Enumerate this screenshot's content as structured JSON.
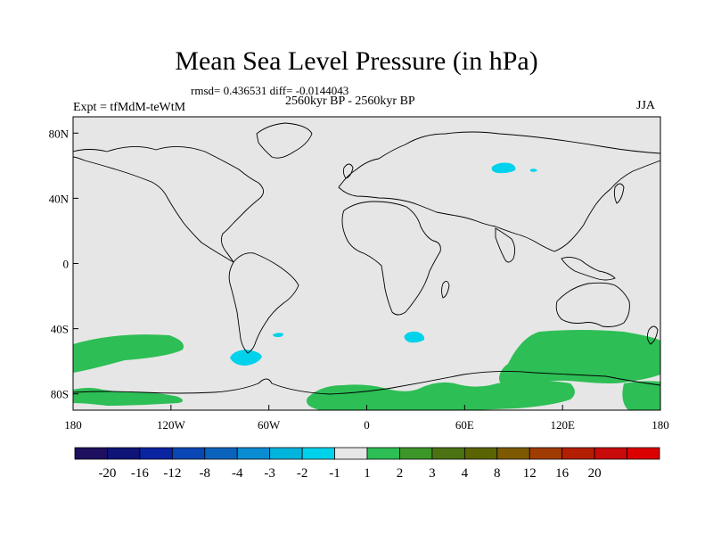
{
  "title": "Mean Sea Level Pressure (in hPa)",
  "stats": "rmsd= 0.436531 diff= -0.0144043",
  "period": "2560kyr BP - 2560kyr BP",
  "experiment": "Expt = tfMdM-teWtM",
  "season": "JJA",
  "colors": {
    "ocean_background": "#e6e6e6",
    "positive_anomaly": "#2dbe55",
    "negative_anomaly": "#00d2eb",
    "coastline": "#000000"
  },
  "axes": {
    "x_ticks": [
      {
        "value": -180,
        "label": "180"
      },
      {
        "value": -120,
        "label": "120W"
      },
      {
        "value": -60,
        "label": "60W"
      },
      {
        "value": 0,
        "label": "0"
      },
      {
        "value": 60,
        "label": "60E"
      },
      {
        "value": 120,
        "label": "120E"
      },
      {
        "value": 180,
        "label": "180"
      }
    ],
    "y_ticks": [
      {
        "value": 80,
        "label": "80N"
      },
      {
        "value": 40,
        "label": "40N"
      },
      {
        "value": 0,
        "label": "0"
      },
      {
        "value": -40,
        "label": "40S"
      },
      {
        "value": -80,
        "label": "80S"
      }
    ],
    "lon_range": [
      -180,
      180
    ],
    "lat_range": [
      -90,
      90
    ]
  },
  "colorbar": {
    "colors": [
      "#1e0f5f",
      "#0f1478",
      "#0a23a0",
      "#0a46b4",
      "#0a64be",
      "#0a8cd2",
      "#00b4dc",
      "#00d2eb",
      "#e6e6e6",
      "#2dbe55",
      "#3c9628",
      "#4b7314",
      "#5a6400",
      "#7d5a00",
      "#a03c00",
      "#b41e00",
      "#c80a0a",
      "#dc0000"
    ],
    "labels": [
      "-20",
      "-16",
      "-12",
      "-8",
      "-4",
      "-3",
      "-2",
      "-1",
      "1",
      "2",
      "3",
      "4",
      "8",
      "12",
      "16",
      "20"
    ]
  }
}
